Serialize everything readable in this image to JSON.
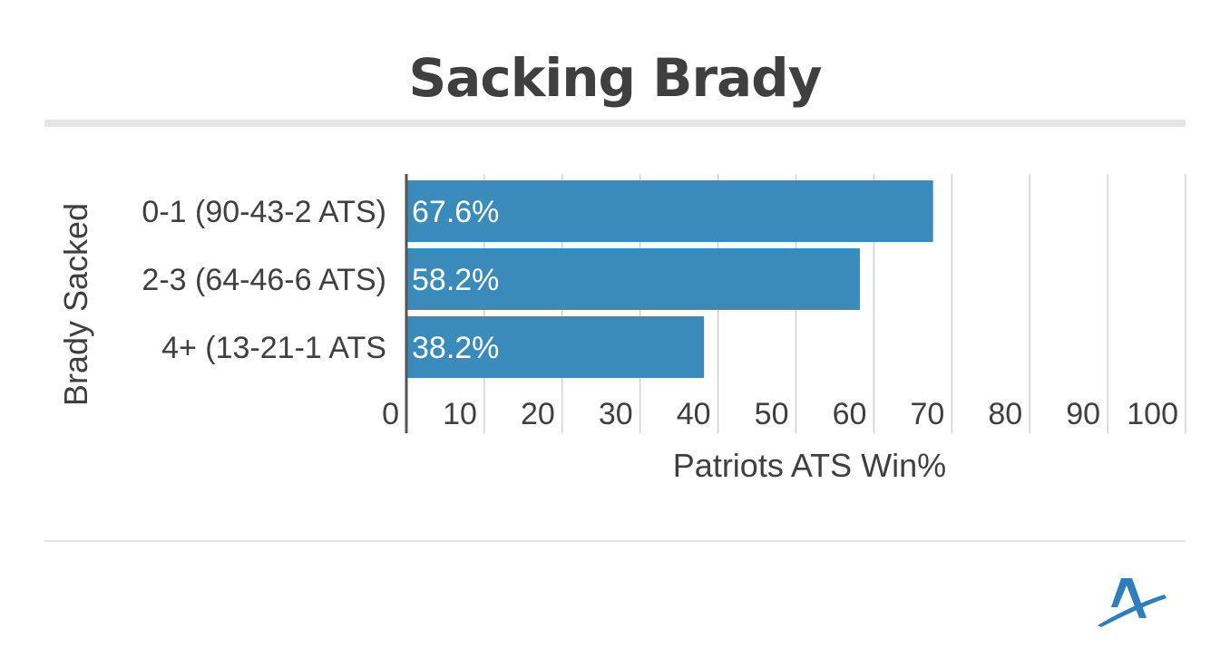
{
  "title": "Sacking Brady",
  "chart_data": {
    "type": "bar",
    "orientation": "horizontal",
    "categories": [
      "0-1 (90-43-2 ATS)",
      "2-3 (64-46-6 ATS)",
      "4+ (13-21-1 ATS"
    ],
    "values": [
      67.6,
      58.2,
      38.2
    ],
    "data_labels": [
      "67.6%",
      "58.2%",
      "38.2%"
    ],
    "xlabel": "Patriots ATS Win%",
    "ylabel": "Brady Sacked",
    "xlim": [
      0,
      100
    ],
    "xticks": [
      0,
      10,
      20,
      30,
      40,
      50,
      60,
      70,
      80,
      90,
      100
    ],
    "xtick_labels": [
      "0",
      "10",
      "20",
      "30",
      "40",
      "50",
      "60",
      "70",
      "80",
      "90",
      "100"
    ],
    "grid": true,
    "legend": "none",
    "colors": {
      "bar": "#3a8bbb",
      "bar_label": "#ffffff",
      "text": "#3f3f3f",
      "grid": "#c8c8c8",
      "axis": "#555555"
    }
  },
  "logo": {
    "icon": "stylized-a-logo-icon",
    "color": "#2f7dbf"
  }
}
